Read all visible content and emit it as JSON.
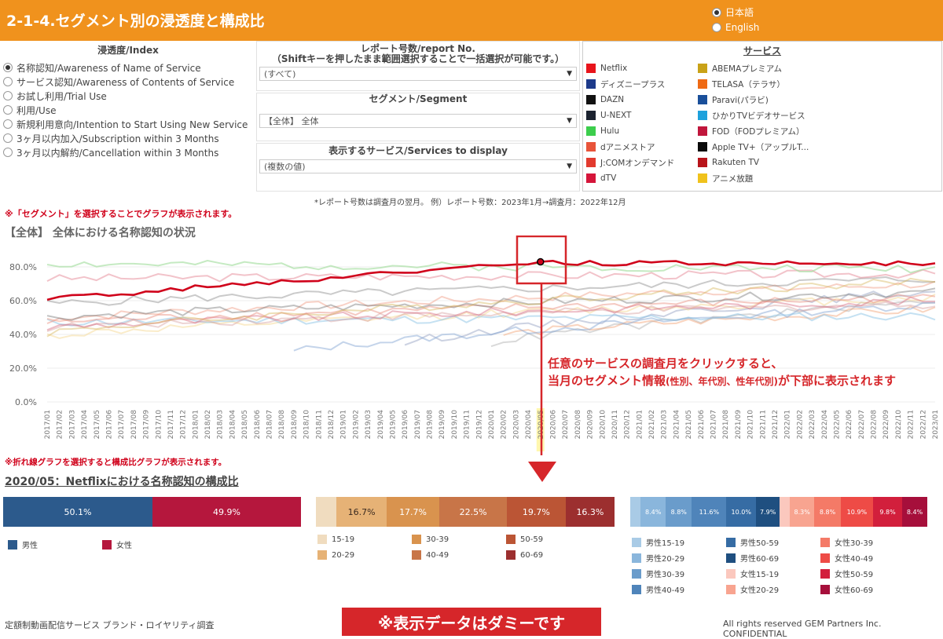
{
  "header": {
    "title": "2-1-4.セグメント別の浸透度と構成比"
  },
  "language": {
    "options": [
      {
        "label": "日本語",
        "selected": true
      },
      {
        "label": "English",
        "selected": false
      }
    ]
  },
  "index_panel": {
    "title": "浸透度/Index",
    "options": [
      {
        "label": "名称認知/Awareness of Name of Service",
        "selected": true
      },
      {
        "label": "サービス認知/Awareness of Contents of Service",
        "selected": false
      },
      {
        "label": "お試し利用/Trial Use",
        "selected": false
      },
      {
        "label": "利用/Use",
        "selected": false
      },
      {
        "label": "新規利用意向/Intention to Start Using New Service",
        "selected": false
      },
      {
        "label": "3ヶ月以内加入/Subscription within 3 Months",
        "selected": false
      },
      {
        "label": "3ヶ月以内解約/Cancellation within 3 Months",
        "selected": false
      }
    ]
  },
  "report_filter": {
    "title": "レポート号数/report No.",
    "subtitle": "（Shiftキーを押したまま範囲選択することで一括選択が可能です。）",
    "value": "(すべて)"
  },
  "segment_filter": {
    "title": "セグメント/Segment",
    "value": "【全体】 全体"
  },
  "services_filter": {
    "title": "表示するサービス/Services to display",
    "value": "(複数の値)"
  },
  "service_legend": {
    "title": "サービス",
    "items": [
      {
        "name": "Netflix",
        "color": "#e8141b"
      },
      {
        "name": "ディズニープラス",
        "color": "#1d3a8a"
      },
      {
        "name": "DAZN",
        "color": "#111111"
      },
      {
        "name": "U-NEXT",
        "color": "#1c2330"
      },
      {
        "name": "Hulu",
        "color": "#3ccd4c"
      },
      {
        "name": "dアニメストア",
        "color": "#e8543a"
      },
      {
        "name": "J:COMオンデマンド",
        "color": "#e23a2e"
      },
      {
        "name": "dTV",
        "color": "#d5153a"
      },
      {
        "name": "ABEMAプレミアム",
        "color": "#c9a218"
      },
      {
        "name": "TELASA（テラサ）",
        "color": "#ef6a14"
      },
      {
        "name": "Paravi(パラビ)",
        "color": "#1a4f9a"
      },
      {
        "name": "ひかりTVビデオサービス",
        "color": "#1ea1dc"
      },
      {
        "name": "FOD（FODプレミアム）",
        "color": "#c0163c"
      },
      {
        "name": "Apple TV+（アップルT...",
        "color": "#0a0a0a"
      },
      {
        "name": "Rakuten TV",
        "color": "#b8141a"
      },
      {
        "name": "アニメ放題",
        "color": "#f0c21c"
      }
    ]
  },
  "notes": {
    "report_note": "*レポート号数は調査月の翌月。 例）レポート号数：2023年1月→調査月：2022年12月",
    "segment_hint": "※「セグメント」を選択することでグラフが表示されます。",
    "line_hint": "※折れ線グラフを選択すると構成比グラフが表示されます。"
  },
  "line_chart_title": "【全体】 全体における名称認知の状況",
  "callout": {
    "line1": "任意のサービスの調査月をクリックすると、",
    "line2a": "当月のセグメント情報",
    "line2b": "(性別、年代別、性年代別)",
    "line2c": "が下部に表示されます"
  },
  "bar_section_title": "2020/05：Netflixにおける名称認知の構成比",
  "gender": {
    "segments": [
      {
        "label": "男性",
        "value": 50.1,
        "text": "50.1%",
        "color": "#2c5a8c"
      },
      {
        "label": "女性",
        "value": 49.9,
        "text": "49.9%",
        "color": "#b5173d"
      }
    ]
  },
  "age": {
    "segments": [
      {
        "label": "15-19",
        "value": 6.9,
        "text": "",
        "color": "#f0dcbf"
      },
      {
        "label": "20-29",
        "value": 16.7,
        "text": "16.7%",
        "color": "#e6b276"
      },
      {
        "label": "30-39",
        "value": 17.7,
        "text": "17.7%",
        "color": "#d9934e"
      },
      {
        "label": "40-49",
        "value": 22.5,
        "text": "22.5%",
        "color": "#c87548"
      },
      {
        "label": "50-59",
        "value": 19.7,
        "text": "19.7%",
        "color": "#bb5535"
      },
      {
        "label": "60-69",
        "value": 16.3,
        "text": "16.3%",
        "color": "#9c2f2f"
      }
    ]
  },
  "sexage": {
    "segments": [
      {
        "label": "男性15-19",
        "value": 3.5,
        "text": "",
        "color": "#a9cbe6"
      },
      {
        "label": "男性20-29",
        "value": 8.4,
        "text": "8.4%",
        "color": "#8ab6dc"
      },
      {
        "label": "男性30-39",
        "value": 8.8,
        "text": "8.8%",
        "color": "#6a9ccb"
      },
      {
        "label": "男性40-49",
        "value": 11.6,
        "text": "11.6%",
        "color": "#4f84ba"
      },
      {
        "label": "男性50-59",
        "value": 10.0,
        "text": "10.0%",
        "color": "#366ca4"
      },
      {
        "label": "男性60-69",
        "value": 7.9,
        "text": "7.9%",
        "color": "#1f4f80"
      },
      {
        "label": "女性15-19",
        "value": 3.4,
        "text": "",
        "color": "#fbc8be"
      },
      {
        "label": "女性20-29",
        "value": 8.3,
        "text": "8.3%",
        "color": "#f8a490"
      },
      {
        "label": "女性30-39",
        "value": 8.8,
        "text": "8.8%",
        "color": "#f47a67"
      },
      {
        "label": "女性40-49",
        "value": 10.9,
        "text": "10.9%",
        "color": "#ee4b46"
      },
      {
        "label": "女性50-59",
        "value": 9.8,
        "text": "9.8%",
        "color": "#d21f3c"
      },
      {
        "label": "女性60-69",
        "value": 8.4,
        "text": "8.4%",
        "color": "#a60f3b"
      }
    ]
  },
  "footer": {
    "left": "定額制動画配信サービス ブランド・ロイヤリティ調査",
    "right": "All rights reserved GEM Partners Inc. CONFIDENTIAL",
    "dummy": "※表示データはダミーです"
  },
  "chart_data": {
    "type": "line",
    "title": "【全体】 全体における名称認知の状況",
    "ylim": [
      0,
      80
    ],
    "yticks": [
      "0.0%",
      "20.0%",
      "40.0%",
      "60.0%",
      "80.0%"
    ],
    "x": [
      "2017/01",
      "2017/02",
      "2017/03",
      "2017/04",
      "2017/05",
      "2017/06",
      "2017/07",
      "2017/08",
      "2017/09",
      "2017/10",
      "2017/11",
      "2017/12",
      "2018/01",
      "2018/02",
      "2018/03",
      "2018/04",
      "2018/05",
      "2018/06",
      "2018/07",
      "2018/08",
      "2018/09",
      "2018/10",
      "2018/11",
      "2018/12",
      "2019/01",
      "2019/02",
      "2019/03",
      "2019/04",
      "2019/05",
      "2019/06",
      "2019/07",
      "2019/08",
      "2019/09",
      "2019/10",
      "2019/11",
      "2019/12",
      "2020/01",
      "2020/02",
      "2020/03",
      "2020/04",
      "2020/05",
      "2020/06",
      "2020/07",
      "2020/08",
      "2020/09",
      "2020/10",
      "2020/11",
      "2020/12",
      "2021/01",
      "2021/02",
      "2021/03",
      "2021/04",
      "2021/05",
      "2021/06",
      "2021/07",
      "2021/08",
      "2021/09",
      "2021/10",
      "2021/11",
      "2021/12",
      "2022/01",
      "2022/02",
      "2022/03",
      "2022/04",
      "2022/05",
      "2022/06",
      "2022/07",
      "2022/08",
      "2022/09",
      "2022/10",
      "2022/11",
      "2022/12",
      "2023/01"
    ],
    "highlight": {
      "x": "2020/05",
      "series": "Netflix",
      "value": 83
    },
    "series": [
      {
        "name": "Netflix",
        "color": "#d0021b",
        "width": 2.6,
        "opacity": 1,
        "start": 0,
        "base": 61,
        "end": 83,
        "step": 40,
        "seed": 1
      },
      {
        "name": "Hulu",
        "color": "#9fdc9a",
        "width": 2,
        "opacity": 0.6,
        "start": 0,
        "base": 82,
        "end": 79,
        "seed": 2
      },
      {
        "name": "dTV",
        "color": "#e27a8a",
        "width": 2,
        "opacity": 0.45,
        "start": 0,
        "base": 73,
        "end": 76,
        "seed": 3
      },
      {
        "name": "ABEMAプレミアム",
        "color": "#d8b860",
        "width": 2,
        "opacity": 0.45,
        "start": 0,
        "base": 41,
        "end": 72,
        "seed": 4
      },
      {
        "name": "U-NEXT",
        "color": "#8a8a8a",
        "width": 2,
        "opacity": 0.45,
        "start": 0,
        "base": 58,
        "end": 73,
        "seed": 5
      },
      {
        "name": "DAZN",
        "color": "#777777",
        "width": 2,
        "opacity": 0.45,
        "start": 0,
        "base": 50,
        "end": 65,
        "seed": 6
      },
      {
        "name": "dアニメストア",
        "color": "#ef9a80",
        "width": 2,
        "opacity": 0.45,
        "start": 0,
        "base": 49,
        "end": 70,
        "seed": 7
      },
      {
        "name": "J:COMオンデマンド",
        "color": "#e88a7a",
        "width": 2,
        "opacity": 0.45,
        "start": 0,
        "base": 47,
        "end": 62,
        "seed": 8
      },
      {
        "name": "FOD（FODプレミアム）",
        "color": "#d86a80",
        "width": 2,
        "opacity": 0.45,
        "start": 0,
        "base": 44,
        "end": 60,
        "seed": 9
      },
      {
        "name": "Rakuten TV",
        "color": "#d7a0a0",
        "width": 2,
        "opacity": 0.45,
        "start": 0,
        "base": 44,
        "end": 58,
        "seed": 10
      },
      {
        "name": "ひかりTVビデオサービス",
        "color": "#8cc4e6",
        "width": 2,
        "opacity": 0.5,
        "start": 0,
        "base": 47,
        "end": 51,
        "seed": 11
      },
      {
        "name": "アニメ放題",
        "color": "#f3d58a",
        "width": 2,
        "opacity": 0.45,
        "start": 0,
        "base": 39,
        "end": 62,
        "seed": 12
      },
      {
        "name": "Paravi(パラビ)",
        "color": "#8aaad6",
        "width": 2,
        "opacity": 0.5,
        "start": 20,
        "base": 30,
        "end": 58,
        "seed": 13
      },
      {
        "name": "TELASA（テラサ）",
        "color": "#f2a070",
        "width": 2,
        "opacity": 0.45,
        "start": 37,
        "base": 40,
        "end": 55,
        "seed": 14
      },
      {
        "name": "ディズニープラス",
        "color": "#9aa6c6",
        "width": 2,
        "opacity": 0.5,
        "start": 29,
        "base": 35,
        "end": 66,
        "seed": 15
      },
      {
        "name": "Apple TV+（アップルT...",
        "color": "#aaaaaa",
        "width": 2,
        "opacity": 0.45,
        "start": 36,
        "base": 35,
        "end": 60,
        "seed": 16
      }
    ]
  }
}
